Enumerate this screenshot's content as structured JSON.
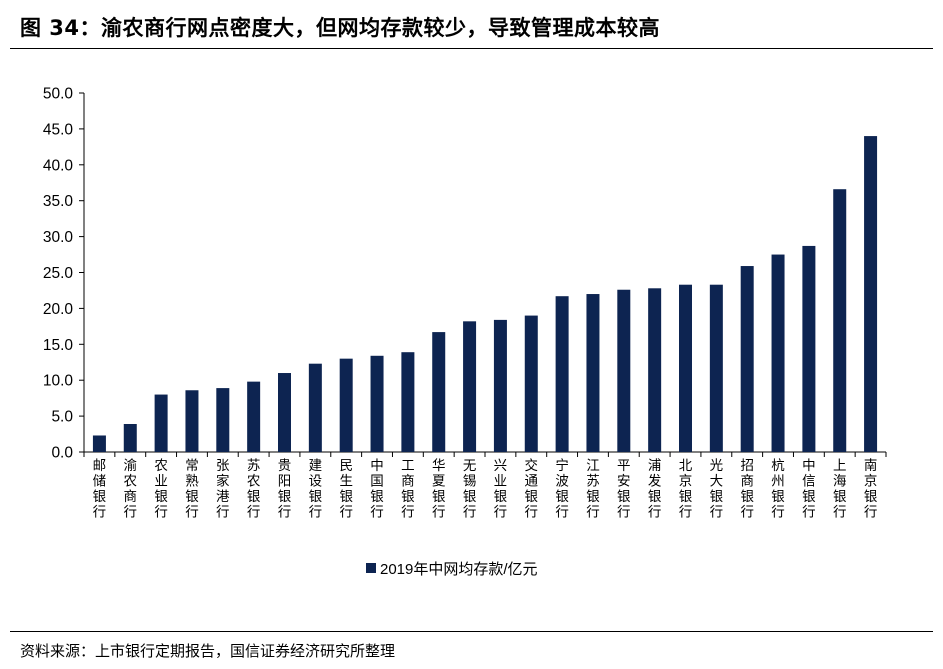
{
  "header": {
    "title": "图 34：渝农商行网点密度大，但网均存款较少，导致管理成本较高"
  },
  "footer": {
    "source": "资料来源：上市银行定期报告，国信证券经济研究所整理"
  },
  "colors": {
    "bar": "#0d2451",
    "axis": "#000000"
  },
  "chart_data": {
    "type": "bar",
    "title": "",
    "xlabel": "",
    "ylabel": "",
    "ylim": [
      0,
      50
    ],
    "yticks": [
      "0.0",
      "5.0",
      "10.0",
      "15.0",
      "20.0",
      "25.0",
      "30.0",
      "35.0",
      "40.0",
      "45.0",
      "50.0"
    ],
    "grid": false,
    "legend_position": "bottom",
    "categories": [
      "邮储银行",
      "渝农商行",
      "农业银行",
      "常熟银行",
      "张家港行",
      "苏农银行",
      "贵阳银行",
      "建设银行",
      "民生银行",
      "中国银行",
      "工商银行",
      "华夏银行",
      "无锡银行",
      "兴业银行",
      "交通银行",
      "宁波银行",
      "江苏银行",
      "平安银行",
      "浦发银行",
      "北京银行",
      "光大银行",
      "招商银行",
      "杭州银行",
      "中信银行",
      "上海银行",
      "南京银行"
    ],
    "series": [
      {
        "name": "2019年中网均存款/亿元",
        "values": [
          2.3,
          3.9,
          8.0,
          8.6,
          8.9,
          9.8,
          11.0,
          12.3,
          13.0,
          13.4,
          13.9,
          16.7,
          18.2,
          18.4,
          19.0,
          21.7,
          22.0,
          22.6,
          22.8,
          23.3,
          23.3,
          25.9,
          27.5,
          28.7,
          36.6,
          44.0
        ]
      }
    ]
  }
}
